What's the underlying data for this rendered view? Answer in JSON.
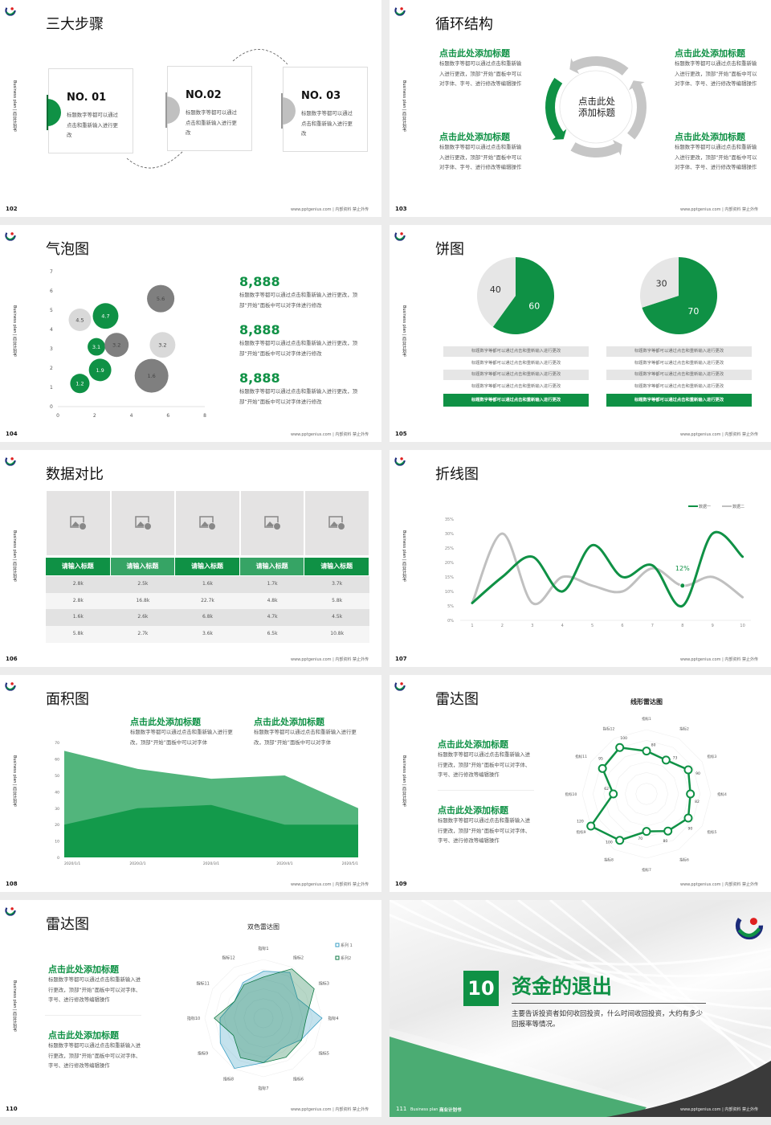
{
  "common": {
    "sidebar_text": "Business plan | 商业计划书",
    "footer_text": "www.pptgenius.com | 内部资料 禁止外传",
    "colors": {
      "green": "#0f9145",
      "light_green": "#52b57c",
      "grey": "#c8c8c8",
      "dark_grey": "#7f7f7f",
      "light_grey": "#d9d9d9"
    }
  },
  "slides": [
    {
      "page": "102",
      "title": "三大步骤",
      "steps": [
        {
          "no": "NO. 01",
          "text": "标题数字等都可以通过点击和重新输入进行更改"
        },
        {
          "no": "NO.02",
          "text": "标题数字等都可以通过点击和重新输入进行更改"
        },
        {
          "no": "NO. 03",
          "text": "标题数字等都可以通过点击和重新输入进行更改"
        }
      ]
    },
    {
      "page": "103",
      "title": "循环结构",
      "center": "点击此处添加标题",
      "items": [
        {
          "heading": "点击此处添加标题",
          "text": "标题数字等都可以通过点击和重新输入进行更改，顶部“开始”面板中可以对字体、字号、进行修改等编辑操作"
        },
        {
          "heading": "点击此处添加标题",
          "text": "标题数字等都可以通过点击和重新输入进行更改，顶部“开始”面板中可以对字体、字号、进行修改等编辑操作"
        },
        {
          "heading": "点击此处添加标题",
          "text": "标题数字等都可以通过点击和重新输入进行更改，顶部“开始”面板中可以对字体、字号、进行修改等编辑操作"
        },
        {
          "heading": "点击此处添加标题",
          "text": "标题数字等都可以通过点击和重新输入进行更改，顶部“开始”面板中可以对字体、字号、进行修改等编辑操作"
        }
      ]
    },
    {
      "page": "104",
      "title": "气泡图",
      "stats": [
        {
          "value": "8,888",
          "text": "标题数字等都可以通过点击和重新输入进行更改，顶部“开始”面板中可以对字体进行修改"
        },
        {
          "value": "8,888",
          "text": "标题数字等都可以通过点击和重新输入进行更改，顶部“开始”面板中可以对字体进行修改"
        },
        {
          "value": "8,888",
          "text": "标题数字等都可以通过点击和重新输入进行更改，顶部“开始”面板中可以对字体进行修改"
        }
      ]
    },
    {
      "page": "105",
      "title": "饼图",
      "tables": [
        [
          "标题数字等都可以通过点击和重新输入进行更改",
          "标题数字等都可以通过点击和重新输入进行更改",
          "标题数字等都可以通过点击和重新输入进行更改",
          "标题数字等都可以通过点击和重新输入进行更改",
          "标题数字等都可以通过点击和重新输入进行更改"
        ],
        [
          "标题数字等都可以通过点击和重新输入进行更改",
          "标题数字等都可以通过点击和重新输入进行更改",
          "标题数字等都可以通过点击和重新输入进行更改",
          "标题数字等都可以通过点击和重新输入进行更改",
          "标题数字等都可以通过点击和重新输入进行更改"
        ]
      ]
    },
    {
      "page": "106",
      "title": "数据对比",
      "headers": [
        "请输入标题",
        "请输入标题",
        "请输入标题",
        "请输入标题",
        "请输入标题"
      ],
      "rows": [
        [
          "2.8k",
          "2.5k",
          "1.6k",
          "1.7k",
          "3.7k"
        ],
        [
          "2.8k",
          "16.8k",
          "22.7k",
          "4.8k",
          "5.8k"
        ],
        [
          "1.6k",
          "2.6k",
          "6.8k",
          "4.7k",
          "4.5k"
        ],
        [
          "5.8k",
          "2.7k",
          "3.6k",
          "6.5k",
          "10.8k"
        ]
      ],
      "image_icon": "image-add-icon"
    },
    {
      "page": "107",
      "title": "折线图"
    },
    {
      "page": "108",
      "title": "面积图",
      "items": [
        {
          "heading": "点击此处添加标题",
          "text": "标题数字等都可以通过点击和重新输入进行更改，顶部“开始”面板中可以对字体"
        },
        {
          "heading": "点击此处添加标题",
          "text": "标题数字等都可以通过点击和重新输入进行更改，顶部“开始”面板中可以对字体"
        }
      ]
    },
    {
      "page": "109",
      "title": "雷达图",
      "items": [
        {
          "heading": "点击此处添加标题",
          "text": "标题数字等都可以通过点击和重新输入进行更改，顶部“开始”面板中可以对字体、字号、进行修改等编辑操作"
        },
        {
          "heading": "点击此处添加标题",
          "text": "标题数字等都可以通过点击和重新输入进行更改，顶部“开始”面板中可以对字体、字号、进行修改等编辑操作"
        }
      ]
    },
    {
      "page": "110",
      "title": "雷达图",
      "items": [
        {
          "heading": "点击此处添加标题",
          "text": "标题数字等都可以通过点击和重新输入进行更改，顶部“开始”面板中可以对字体、字号、进行修改等编辑操作"
        },
        {
          "heading": "点击此处添加标题",
          "text": "标题数字等都可以通过点击和重新输入进行更改，顶部“开始”面板中可以对字体、字号、进行修改等编辑操作"
        }
      ]
    },
    {
      "page": "111",
      "section_no": "10",
      "title": "资金的退出",
      "subtitle": "主要告诉投资者如何收回投资，什么时间收回投资，大约有多少回报率等情况。",
      "footer_left": "Business plan",
      "footer_brand": "商业计划书"
    }
  ],
  "chart_data": [
    {
      "type": "scatter",
      "subtype": "bubble",
      "xlim": [
        0,
        8
      ],
      "ylim": [
        0,
        7
      ],
      "xticks": [
        "0",
        "2",
        "4",
        "6",
        "8"
      ],
      "yticks": [
        "0",
        "1",
        "2",
        "3",
        "4",
        "5",
        "6",
        "7"
      ],
      "points": [
        {
          "x": 1.2,
          "y": 1.2,
          "z": 2.9,
          "label": "1.2",
          "color": "#0f9145"
        },
        {
          "x": 2.3,
          "y": 1.9,
          "z": 3.9,
          "label": "1.9",
          "color": "#0f9145"
        },
        {
          "x": 2.1,
          "y": 3.1,
          "z": 2.4,
          "label": "3.1",
          "color": "#0f9145"
        },
        {
          "x": 2.6,
          "y": 4.7,
          "z": 5.1,
          "label": "4.7",
          "color": "#0f9145"
        },
        {
          "x": 1.2,
          "y": 4.5,
          "z": 3.9,
          "label": "4.5",
          "color": "#d9d9d9"
        },
        {
          "x": 3.2,
          "y": 3.2,
          "z": 4.5,
          "label": "3.2",
          "color": "#7f7f7f"
        },
        {
          "x": 5.7,
          "y": 3.2,
          "z": 5.1,
          "label": "3.2",
          "color": "#d9d9d9"
        },
        {
          "x": 5.6,
          "y": 5.6,
          "z": 5.8,
          "label": "5.6",
          "color": "#7f7f7f"
        },
        {
          "x": 5.1,
          "y": 1.6,
          "z": 8.8,
          "label": "1.6",
          "color": "#7f7f7f"
        }
      ]
    },
    {
      "type": "pie",
      "slices": [
        {
          "label": "60",
          "value": 60,
          "color": "#0f9145"
        },
        {
          "label": "40",
          "value": 40,
          "color": "#e6e6e6"
        }
      ]
    },
    {
      "type": "pie",
      "slices": [
        {
          "label": "70",
          "value": 70,
          "color": "#0f9145"
        },
        {
          "label": "30",
          "value": 30,
          "color": "#e6e6e6"
        }
      ]
    },
    {
      "type": "line",
      "smooth": true,
      "categories": [
        "1",
        "2",
        "3",
        "4",
        "5",
        "6",
        "7",
        "8",
        "9",
        "10"
      ],
      "ylim": [
        0,
        35
      ],
      "yticks": [
        "0%",
        "5%",
        "10%",
        "15%",
        "20%",
        "25%",
        "30%",
        "35%"
      ],
      "legend": "top-right",
      "series": [
        {
          "name": "数据一",
          "color": "#0f9145",
          "values": [
            6,
            15,
            22,
            10,
            26,
            15,
            19,
            5,
            30,
            22
          ]
        },
        {
          "name": "数据二",
          "color": "#c0c0c0",
          "values": [
            6,
            30,
            6,
            15,
            12,
            10,
            18,
            12,
            15,
            8
          ]
        }
      ],
      "annotation": {
        "text": "12%",
        "x": "8",
        "y": 12
      }
    },
    {
      "type": "area",
      "categories": [
        "2020/1/1",
        "2020/2/1",
        "2020/3/1",
        "2020/4/1",
        "2020/5/1"
      ],
      "ylim": [
        0,
        70
      ],
      "yticks": [
        "0",
        "10",
        "20",
        "30",
        "40",
        "50",
        "60",
        "70"
      ],
      "series": [
        {
          "color": "#52b57c",
          "values": [
            65,
            54,
            48,
            50,
            30
          ]
        },
        {
          "color": "#139a4b",
          "values": [
            20,
            30,
            32,
            20,
            20
          ]
        }
      ]
    },
    {
      "type": "radar",
      "title": "线形雷达图",
      "max": 120,
      "categories": [
        "指标1",
        "指标2",
        "指标3",
        "指标4",
        "指标5",
        "指标6",
        "指标7",
        "指标8",
        "指标9",
        "指标10",
        "指标11",
        "指标12"
      ],
      "series": [
        {
          "color": "#0f9145",
          "values": [
            80,
            73,
            90,
            82,
            90,
            80,
            70,
            100,
            120,
            62,
            95,
            100
          ]
        }
      ]
    },
    {
      "type": "radar",
      "title": "双色雷达图",
      "max": 100,
      "legend": "top-right",
      "categories": [
        "指标1",
        "指标2",
        "指标3",
        "指标4",
        "指标5",
        "指标6",
        "指标7",
        "指标8",
        "指标9",
        "指标10",
        "指标11",
        "指标12"
      ],
      "series": [
        {
          "name": "系列 1",
          "color": "#3a9fc4",
          "values": [
            80,
            90,
            67,
            100,
            74,
            60,
            76,
            99,
            85,
            74,
            57,
            70
          ]
        },
        {
          "name": "系列2",
          "color": "#0f7a45",
          "values": [
            70,
            97,
            100,
            73,
            75,
            77,
            76,
            78,
            59,
            84,
            57,
            66
          ]
        }
      ]
    }
  ]
}
